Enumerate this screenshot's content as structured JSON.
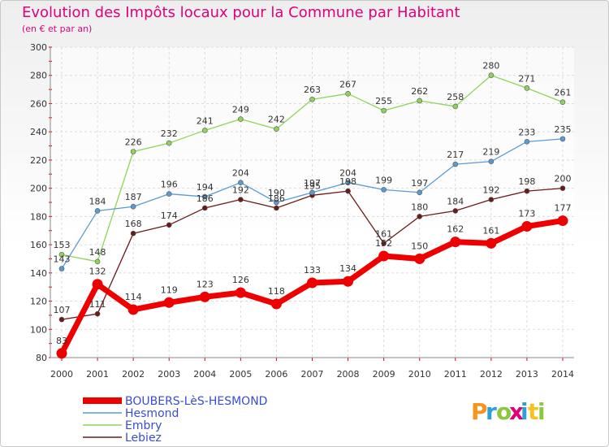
{
  "chart_data": {
    "type": "line",
    "title": "Evolution des Impôts locaux pour la Commune par Habitant",
    "subtitle": "(en € et par an)",
    "x": [
      2000,
      2001,
      2002,
      2003,
      2004,
      2005,
      2006,
      2007,
      2008,
      2009,
      2010,
      2011,
      2012,
      2013,
      2014
    ],
    "ylim": [
      80,
      300
    ],
    "yticks": [
      80,
      100,
      120,
      140,
      160,
      180,
      200,
      220,
      240,
      260,
      280,
      300
    ],
    "grid": true,
    "legend_position": "bottom-left",
    "series": [
      {
        "name": "BOUBERS-LèS-HESMOND",
        "color": "#ee0000",
        "values": [
          83,
          132,
          114,
          119,
          123,
          126,
          118,
          133,
          134,
          152,
          150,
          162,
          161,
          173,
          177
        ]
      },
      {
        "name": "Hesmond",
        "color": "#5b9bd5",
        "values": [
          143,
          184,
          187,
          196,
          194,
          204,
          190,
          197,
          204,
          199,
          197,
          217,
          219,
          233,
          235
        ]
      },
      {
        "name": "Embry",
        "color": "#8fd45a",
        "values": [
          153,
          148,
          226,
          232,
          241,
          249,
          242,
          263,
          267,
          255,
          262,
          258,
          280,
          271,
          261
        ]
      },
      {
        "name": "Lebiez",
        "color": "#6b1a1a",
        "values": [
          107,
          111,
          168,
          174,
          186,
          192,
          186,
          195,
          198,
          161,
          180,
          184,
          192,
          198,
          200
        ]
      }
    ]
  },
  "logo": {
    "text": "Proxiti",
    "colors": [
      "#f7941d",
      "#2e9fd8",
      "#8dc63f",
      "#e2007a",
      "#2e9fd8",
      "#f7c21d",
      "#8dc63f"
    ]
  }
}
